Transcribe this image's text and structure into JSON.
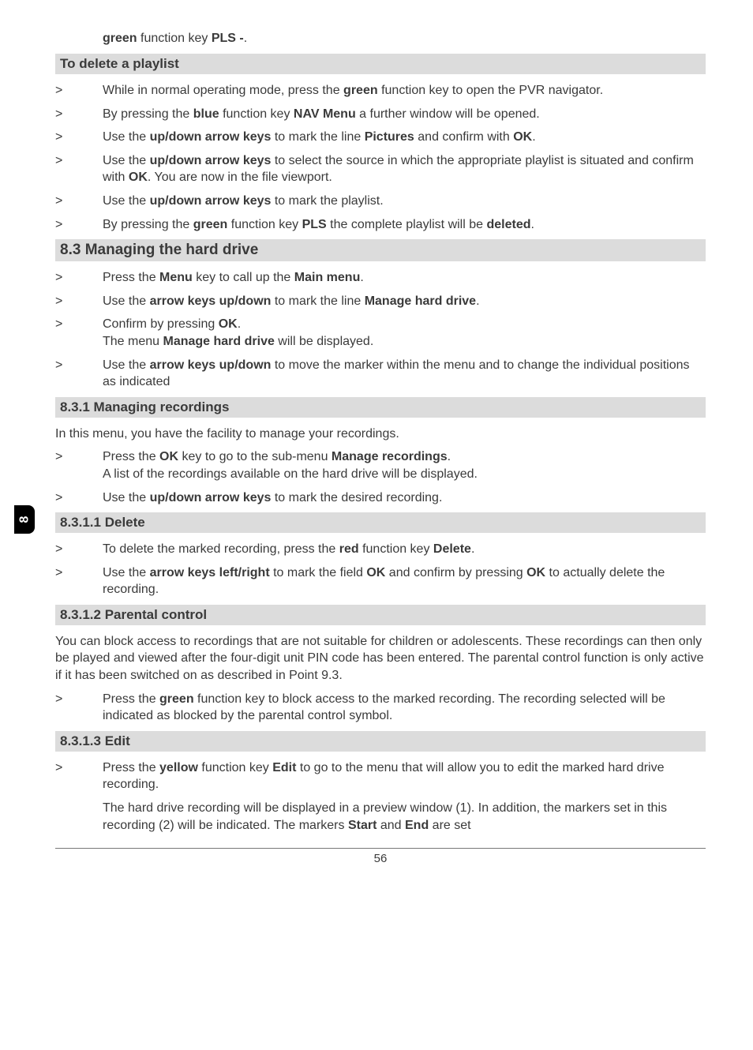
{
  "intro": {
    "pre": "green",
    "mid": " function key ",
    "post": "PLS -",
    "tail": "."
  },
  "h_delete_playlist": "To delete a playlist",
  "dp1": {
    "a": "While in normal operating mode, press the ",
    "b": "green",
    "c": " function key to open the PVR navigator."
  },
  "dp2": {
    "a": "By pressing the ",
    "b": "blue",
    "c": " function key ",
    "d": "NAV Menu",
    "e": " a further window will be opened."
  },
  "dp3": {
    "a": "Use the ",
    "b": "up/down arrow keys",
    "c": " to mark the line ",
    "d": "Pictures",
    "e": " and confirm with ",
    "f": "OK",
    "g": "."
  },
  "dp4": {
    "a": "Use the ",
    "b": "up/down arrow keys",
    "c": " to select the source in which the appropriate playlist is situated and confirm with ",
    "d": "OK",
    "e": ". You are now in the file viewport."
  },
  "dp5": {
    "a": "Use the ",
    "b": "up/down arrow keys",
    "c": " to mark the playlist."
  },
  "dp6": {
    "a": "By pressing the ",
    "b": "green",
    "c": " function key ",
    "d": "PLS",
    "e": " the complete playlist will be ",
    "f": "deleted",
    "g": "."
  },
  "h_83": "8.3 Managing the hard drive",
  "m1": {
    "a": "Press the ",
    "b": "Menu",
    "c": " key to call up the ",
    "d": "Main menu",
    "e": "."
  },
  "m2": {
    "a": "Use the ",
    "b": "arrow keys up/down",
    "c": " to mark the line ",
    "d": "Manage hard drive",
    "e": "."
  },
  "m3": {
    "a": "Confirm by pressing ",
    "b": "OK",
    "c": ".",
    "d": "The menu ",
    "e": "Manage hard drive",
    "f": " will be displayed."
  },
  "m4": {
    "a": "Use the ",
    "b": "arrow keys up/down",
    "c": " to move the marker within the menu and to change the individual positions as indicated"
  },
  "h_831": "8.3.1 Managing recordings",
  "r_intro": "In this menu, you have the facility to manage your recordings.",
  "r1": {
    "a": "Press the ",
    "b": "OK",
    "c": " key to go to the sub-menu ",
    "d": "Manage recordings",
    "e": ".",
    "f": "A list of the recordings available on the hard drive will be displayed."
  },
  "r2": {
    "a": "Use the ",
    "b": "up/down arrow keys",
    "c": " to mark the desired recording."
  },
  "h_8311": "8.3.1.1 Delete",
  "d1": {
    "a": "To delete the marked recording, press the ",
    "b": "red",
    "c": " function key ",
    "d": "Delete",
    "e": "."
  },
  "d2": {
    "a": "Use the ",
    "b": "arrow keys left/right",
    "c": " to mark the field ",
    "d": "OK",
    "e": " and confirm by pressing ",
    "f": "OK",
    "g": " to actually delete the recording."
  },
  "h_8312": "8.3.1.2 Parental control",
  "pc_para": "You can block access to recordings that are not suitable for children or adolescents. These recordings can then only be played and viewed after the four-digit unit PIN code has been entered. The parental control function is only active if it has been switched on as described in Point 9.3.",
  "pc1": {
    "a": "Press the ",
    "b": "green",
    "c": " function key to block access to the marked recording. The recording selected will be indicated as blocked by the parental control symbol."
  },
  "h_8313": "8.3.1.3 Edit",
  "e1": {
    "a": "Press the ",
    "b": "yellow",
    "c": " function key ",
    "d": "Edit",
    "e": " to go to the menu that will allow you to edit the marked hard drive recording."
  },
  "e_para": {
    "a": "The hard drive recording will be displayed in a preview window (1). In addition, the markers set in this recording (2) will be indicated. The markers ",
    "b": "Start",
    "c": " and ",
    "d": "End",
    "e": " are set"
  },
  "page_number": "56",
  "side_tab": "8",
  "gt": ">"
}
